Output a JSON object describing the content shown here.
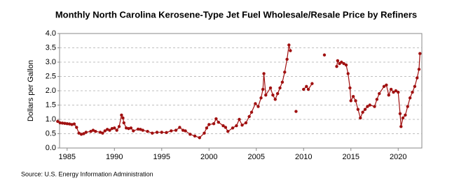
{
  "chart_data": {
    "type": "line",
    "title": "Monthly North Carolina Kerosene-Type Jet Fuel Wholesale/Resale Price by Refiners",
    "y_label": "Dollars per Gallon",
    "source": "Source: U.S. Energy Information Administration",
    "x": [
      1984.0,
      1984.25,
      1984.5,
      1984.75,
      1985.0,
      1985.25,
      1985.5,
      1985.75,
      1986.0,
      1986.25,
      1986.5,
      1986.75,
      1987.0,
      1987.5,
      1987.75,
      1988.0,
      1988.5,
      1988.75,
      1989.0,
      1989.25,
      1989.5,
      1989.75,
      1990.0,
      1990.25,
      1990.5,
      1990.75,
      1990.9,
      1991.0,
      1991.25,
      1991.5,
      1991.75,
      1992.0,
      1992.5,
      1992.75,
      1993.0,
      1993.5,
      1994.0,
      1994.5,
      1995.0,
      1995.5,
      1996.0,
      1996.5,
      1996.9,
      1997.25,
      1997.5,
      1998.0,
      1998.5,
      1999.0,
      1999.5,
      1999.75,
      2000.0,
      2000.5,
      2000.75,
      2001.0,
      2001.5,
      2001.75,
      2002.0,
      2002.5,
      2002.9,
      2003.2,
      2003.5,
      2003.9,
      2004.25,
      2004.5,
      2004.9,
      2005.2,
      2005.5,
      2005.7,
      2005.8,
      2006.0,
      2006.5,
      2006.75,
      2007.0,
      2007.25,
      2007.5,
      2007.75,
      2008.0,
      2008.25,
      2008.45,
      2008.6,
      2008.9,
      2009.2,
      2009.6,
      2010.0,
      2010.3,
      2010.5,
      2010.9,
      2011.5,
      2012.2,
      2012.9,
      2013.5,
      2013.6,
      2013.8,
      2014.0,
      2014.25,
      2014.5,
      2014.7,
      2014.9,
      2015.0,
      2015.25,
      2015.5,
      2015.75,
      2016.0,
      2016.25,
      2016.5,
      2016.75,
      2017.0,
      2017.5,
      2017.75,
      2018.0,
      2018.5,
      2018.75,
      2019.0,
      2019.25,
      2019.5,
      2019.75,
      2020.0,
      2020.2,
      2020.3,
      2020.5,
      2020.75,
      2021.0,
      2021.25,
      2021.5,
      2021.75,
      2022.0,
      2022.2,
      2022.3
    ],
    "series": [
      {
        "name": "North Carolina Kerosene-Type Jet Fuel Wholesale/Resale Price",
        "color": "#a01010",
        "values": [
          0.93,
          0.88,
          0.87,
          0.86,
          0.85,
          0.84,
          0.82,
          0.84,
          0.72,
          0.52,
          0.48,
          0.5,
          0.55,
          0.58,
          0.62,
          0.58,
          0.55,
          0.52,
          0.6,
          0.65,
          0.62,
          0.68,
          0.7,
          0.62,
          0.75,
          1.15,
          1.05,
          0.88,
          0.7,
          0.68,
          0.7,
          0.6,
          0.66,
          0.65,
          0.62,
          0.58,
          0.52,
          0.55,
          0.55,
          0.54,
          0.6,
          0.62,
          0.72,
          0.62,
          0.6,
          0.48,
          0.42,
          0.36,
          0.52,
          0.7,
          0.82,
          0.85,
          1.02,
          0.9,
          0.78,
          0.72,
          0.58,
          0.7,
          0.78,
          1.0,
          0.8,
          0.88,
          1.1,
          1.25,
          1.55,
          1.45,
          1.75,
          2.05,
          2.6,
          1.85,
          2.1,
          1.85,
          1.7,
          1.9,
          2.1,
          2.3,
          2.65,
          3.1,
          3.6,
          3.4,
          null,
          1.28,
          null,
          2.05,
          2.15,
          2.05,
          2.25,
          null,
          3.25,
          null,
          2.85,
          3.05,
          2.95,
          3.0,
          2.95,
          2.9,
          2.6,
          2.1,
          1.65,
          1.8,
          1.65,
          1.35,
          1.05,
          1.25,
          1.35,
          1.45,
          1.5,
          1.45,
          1.7,
          1.9,
          2.15,
          2.2,
          1.85,
          2.05,
          1.95,
          2.0,
          1.95,
          1.2,
          0.75,
          1.05,
          1.15,
          1.45,
          1.75,
          1.95,
          2.15,
          2.45,
          2.75,
          3.3
        ]
      }
    ],
    "xlim": [
      1984.2,
      2022.5
    ],
    "xticks": [
      1985,
      1990,
      1995,
      2000,
      2005,
      2010,
      2015,
      2020
    ],
    "ylim": [
      0,
      4
    ],
    "yticks": [
      {
        "value": 0,
        "label": "0.0"
      },
      {
        "value": 0.5,
        "label": "0.5"
      },
      {
        "value": 1,
        "label": "1.0"
      },
      {
        "value": 1.5,
        "label": "1.5"
      },
      {
        "value": 2,
        "label": "2.0"
      },
      {
        "value": 2.5,
        "label": "2.5"
      },
      {
        "value": 3,
        "label": "3.0"
      },
      {
        "value": 3.5,
        "label": "3.5"
      },
      {
        "value": 4,
        "label": "4.0"
      }
    ],
    "grid": true
  }
}
